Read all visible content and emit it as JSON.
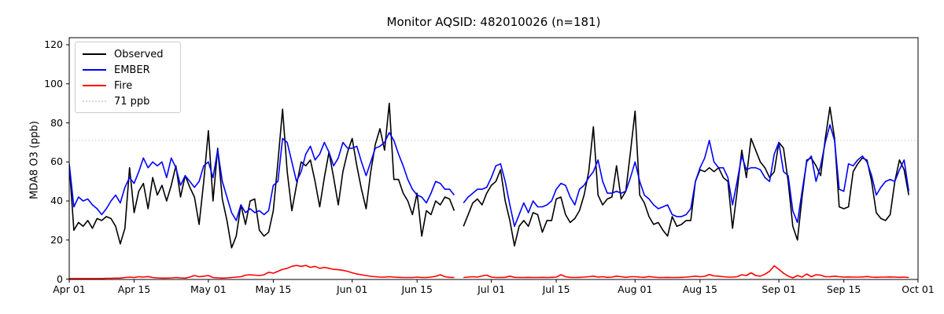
{
  "title": "Monitor AQSID: 482010026 (n=181)",
  "chart_data": {
    "type": "line",
    "title": "Monitor AQSID: 482010026 (n=181)",
    "xlabel": "",
    "ylabel": "MDA8 O3 (ppb)",
    "ylim": [
      0,
      125
    ],
    "grid": false,
    "legend_position": "upper left",
    "x_start_date": "Apr 01",
    "x_end_date": "Oct 01",
    "x_unit": "day index from Apr 01",
    "y_ticks": [
      0,
      20,
      40,
      60,
      80,
      100,
      120
    ],
    "x_ticks": [
      {
        "day": 0,
        "label": "Apr 01"
      },
      {
        "day": 14,
        "label": "Apr 15"
      },
      {
        "day": 30,
        "label": "May 01"
      },
      {
        "day": 44,
        "label": "May 15"
      },
      {
        "day": 61,
        "label": "Jun 01"
      },
      {
        "day": 75,
        "label": "Jun 15"
      },
      {
        "day": 91,
        "label": "Jul 01"
      },
      {
        "day": 105,
        "label": "Jul 15"
      },
      {
        "day": 122,
        "label": "Aug 01"
      },
      {
        "day": 136,
        "label": "Aug 15"
      },
      {
        "day": 153,
        "label": "Sep 01"
      },
      {
        "day": 167,
        "label": "Sep 15"
      },
      {
        "day": 183,
        "label": "Oct 01"
      }
    ],
    "threshold": {
      "value": 71,
      "label": "71 ppb",
      "color": "#d3d3d3",
      "style": "dotted"
    },
    "series": [
      {
        "name": "Observed",
        "color": "#000000",
        "values": [
          59,
          25,
          29,
          27,
          30,
          26,
          31,
          30,
          32,
          31,
          27,
          18,
          26,
          57,
          34,
          45,
          49,
          36,
          52,
          43,
          48,
          40,
          48,
          58,
          42,
          53,
          47,
          42,
          28,
          50,
          76,
          40,
          67,
          41,
          30,
          16,
          22,
          38,
          28,
          40,
          41,
          25,
          22,
          24,
          35,
          60,
          87,
          55,
          35,
          48,
          60,
          58,
          61,
          50,
          37,
          52,
          65,
          52,
          38,
          55,
          65,
          72,
          58,
          46,
          36,
          55,
          69,
          77,
          66,
          90,
          51,
          51,
          44,
          40,
          33,
          44,
          22,
          35,
          33,
          40,
          38,
          42,
          41,
          35,
          null,
          27,
          33,
          39,
          41,
          38,
          44,
          48,
          50,
          56,
          40,
          30,
          17,
          27,
          30,
          27,
          34,
          33,
          24,
          30,
          30,
          41,
          42,
          33,
          29,
          31,
          35,
          43,
          55,
          78,
          43,
          38,
          41,
          42,
          58,
          41,
          45,
          65,
          86,
          43,
          39,
          32,
          28,
          29,
          25,
          22,
          32,
          27,
          28,
          30,
          30,
          50,
          56,
          55,
          57,
          55,
          57,
          52,
          50,
          26,
          45,
          66,
          52,
          72,
          66,
          60,
          57,
          52,
          55,
          70,
          67,
          50,
          27,
          20,
          42,
          61,
          62,
          58,
          53,
          72,
          88,
          72,
          37,
          36,
          37,
          55,
          59,
          62,
          61,
          50,
          34,
          31,
          30,
          33,
          50,
          61,
          56,
          43
        ]
      },
      {
        "name": "EMBER",
        "color": "#0000ff",
        "values": [
          59,
          37,
          42,
          40,
          41,
          38,
          36,
          33,
          36,
          40,
          43,
          39,
          47,
          52,
          49,
          55,
          62,
          57,
          60,
          58,
          60,
          52,
          62,
          57,
          48,
          53,
          50,
          47,
          50,
          58,
          60,
          52,
          66,
          50,
          42,
          34,
          30,
          38,
          34,
          36,
          34,
          35,
          33,
          35,
          48,
          50,
          72,
          70,
          60,
          50,
          55,
          64,
          68,
          61,
          64,
          70,
          65,
          58,
          62,
          70,
          67,
          67,
          68,
          60,
          53,
          60,
          67,
          68,
          70,
          75,
          71,
          64,
          58,
          51,
          46,
          43,
          42,
          39,
          44,
          50,
          49,
          46,
          46,
          43,
          null,
          39,
          42,
          44,
          46,
          46,
          47,
          52,
          58,
          59,
          50,
          38,
          27,
          33,
          39,
          34,
          40,
          37,
          37,
          38,
          40,
          46,
          49,
          48,
          42,
          38,
          46,
          48,
          52,
          55,
          61,
          50,
          44,
          44,
          45,
          44,
          45,
          52,
          60,
          50,
          43,
          41,
          38,
          36,
          37,
          38,
          33,
          32,
          32,
          33,
          36,
          50,
          57,
          62,
          71,
          60,
          57,
          57,
          52,
          38,
          50,
          63,
          56,
          57,
          57,
          56,
          52,
          50,
          64,
          70,
          55,
          53,
          35,
          29,
          45,
          60,
          63,
          50,
          58,
          70,
          79,
          71,
          46,
          45,
          59,
          58,
          61,
          63,
          60,
          53,
          43,
          47,
          50,
          51,
          50,
          56,
          61,
          45
        ]
      },
      {
        "name": "Fire",
        "color": "#ff0000",
        "values": [
          0.3,
          0.3,
          0.3,
          0.3,
          0.3,
          0.3,
          0.3,
          0.3,
          0.4,
          0.4,
          0.5,
          0.5,
          0.8,
          1,
          0.8,
          1.2,
          1,
          1.3,
          0.8,
          0.6,
          0.5,
          0.5,
          0.6,
          0.8,
          0.6,
          0.5,
          1,
          1.8,
          1.2,
          1.5,
          1.8,
          0.8,
          0.6,
          0.5,
          0.6,
          0.8,
          1,
          1.2,
          2,
          2.2,
          2,
          1.8,
          2.2,
          3.5,
          3,
          4,
          5,
          5.5,
          6.5,
          7,
          6.5,
          7,
          6,
          6.5,
          5.5,
          6,
          5.5,
          5,
          4.8,
          4.5,
          4,
          3.2,
          2.6,
          2.2,
          1.8,
          1.4,
          1.2,
          1,
          1,
          1.2,
          1,
          0.9,
          0.8,
          0.8,
          0.8,
          1,
          0.8,
          0.8,
          1,
          1.4,
          2.2,
          1.2,
          0.9,
          0.8,
          null,
          0.8,
          1,
          1.2,
          1,
          1.6,
          2,
          1,
          0.8,
          0.8,
          0.9,
          1.5,
          0.9,
          0.8,
          0.8,
          0.9,
          0.8,
          0.8,
          0.9,
          0.8,
          0.9,
          1,
          2.2,
          1.2,
          0.9,
          0.8,
          0.9,
          1,
          1.2,
          1.5,
          1,
          1.2,
          0.9,
          1,
          1.5,
          1.2,
          0.9,
          1.2,
          1.2,
          1,
          0.9,
          1.3,
          1,
          0.8,
          0.8,
          0.9,
          0.8,
          0.8,
          0.9,
          1,
          1.2,
          1.5,
          1.2,
          1.4,
          2.3,
          1.6,
          1.5,
          1.2,
          1,
          1,
          1.2,
          2.2,
          1.8,
          3.2,
          1.8,
          1.5,
          2.5,
          4,
          6.8,
          5,
          3,
          1.5,
          0.6,
          1.8,
          1,
          2.6,
          1.2,
          2.2,
          2,
          1.2,
          1.2,
          1.5,
          1.2,
          1,
          1.1,
          1,
          1,
          1.1,
          1.3,
          1,
          0.9,
          1,
          1,
          1.1,
          1,
          0.9,
          1,
          0.8
        ]
      }
    ]
  }
}
